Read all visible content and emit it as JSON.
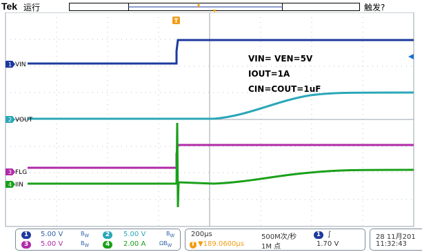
{
  "header": {
    "brand": "Tek",
    "run_state": "运行",
    "trigger_status": "触发?"
  },
  "annotations": {
    "line1": "VIN= VEN=5V",
    "line2": "IOUT=1A",
    "line3": "CIN=COUT=1uF"
  },
  "channels": [
    {
      "number": "1",
      "label": "VIN",
      "color": "#1c3a9e"
    },
    {
      "number": "2",
      "label": "VOUT",
      "color": "#2aa7b8"
    },
    {
      "number": "3",
      "label": "FLG",
      "color": "#b02aa8"
    },
    {
      "number": "4",
      "label": "IIN",
      "color": "#1aa01a"
    }
  ],
  "readouts": {
    "ch1_scale": "5.00 V",
    "ch2_scale": "5.00 V",
    "ch3_scale": "5.00 V",
    "ch4_scale": "2.00 A",
    "bw_symbol": "B",
    "bw_sub": "W",
    "timebase": "200µs",
    "trigger_pos": "▼189.0600µs",
    "sample_rate": "500M次/秒",
    "record_length": "1M 点",
    "trig_channel": "1",
    "trig_slope": "∫",
    "trig_level": "1.70 V",
    "date": "28 11月201",
    "time": "11:32:43"
  },
  "trigger_marker": "T",
  "colors": {
    "grid": "#9aa3ad",
    "ch1": "#1c3a9e",
    "ch2": "#2aa7b8",
    "ch3": "#b02aa8",
    "ch4": "#1aa01a",
    "trigger": "#f39c12"
  }
}
